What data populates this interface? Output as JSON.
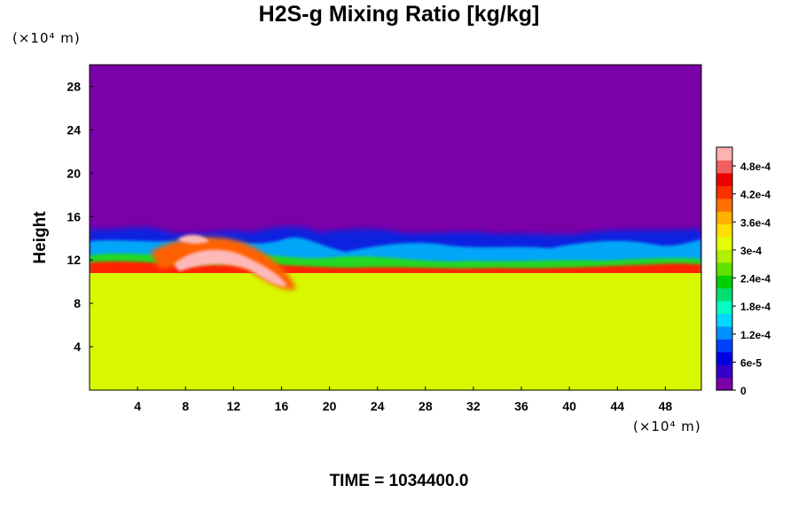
{
  "chart_data": {
    "type": "heatmap",
    "title": "H2S-g Mixing Ratio [kg/kg]",
    "ylabel": "Height",
    "x_unit": "(×10⁴ m)",
    "y_unit": "(×10⁴ m)",
    "xlim": [
      0,
      51
    ],
    "ylim": [
      0,
      30
    ],
    "x_ticks": [
      "4",
      "8",
      "12",
      "16",
      "20",
      "24",
      "28",
      "32",
      "36",
      "40",
      "44",
      "48"
    ],
    "y_ticks": [
      "4",
      "8",
      "12",
      "16",
      "20",
      "24",
      "28"
    ],
    "x_tick_values": [
      4,
      8,
      12,
      16,
      20,
      24,
      28,
      32,
      36,
      40,
      44,
      48
    ],
    "y_tick_values": [
      4,
      8,
      12,
      16,
      20,
      24,
      28
    ],
    "colorbar": {
      "range": [
        0,
        0.00052
      ],
      "tick_labels": [
        "4.8e-4",
        "4.2e-4",
        "3.6e-4",
        "3e-4",
        "2.4e-4",
        "1.8e-4",
        "1.2e-4",
        "6e-5",
        "0"
      ],
      "tick_values": [
        0.00048,
        0.00042,
        0.00036,
        0.0003,
        0.00024,
        0.00018,
        0.00012,
        6e-05,
        0
      ],
      "colors": [
        "#7a00a8",
        "#3300c8",
        "#0000e0",
        "#0040ff",
        "#0090ff",
        "#00d8ff",
        "#00ffc0",
        "#00e070",
        "#00d000",
        "#60e000",
        "#b0f000",
        "#e4ff00",
        "#ffe000",
        "#ffb000",
        "#ff7000",
        "#ff3000",
        "#f00000",
        "#f06060",
        "#ffb0b0"
      ]
    },
    "summary": {
      "background_value": 0,
      "lower_layer_value": 0.00036,
      "mixing_layer_top_height": [
        14,
        15
      ],
      "peak_region_x": [
        6,
        16
      ],
      "peak_region_height": [
        9,
        13
      ]
    }
  },
  "footer": {
    "time_label": "TIME = 1034400.0"
  }
}
